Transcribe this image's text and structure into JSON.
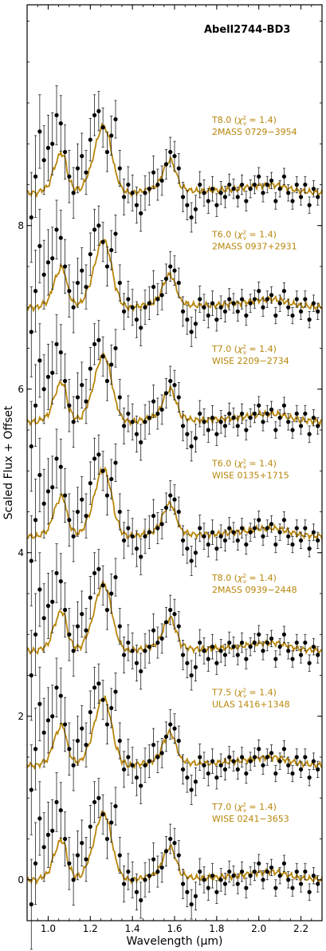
{
  "chart_data": {
    "type": "line",
    "title": "Abell2744-BD3",
    "xlabel": "Wavelength (μm)",
    "ylabel": "Scaled Flux + Offset",
    "xlim": [
      0.9,
      2.3
    ],
    "ylim": [
      -0.5,
      10.7
    ],
    "x_ticks": [
      1.0,
      1.2,
      1.4,
      1.6,
      1.8,
      2.0,
      2.2
    ],
    "x_tick_labels": [
      "1.0",
      "1.2",
      "1.4",
      "1.6",
      "1.8",
      "2.0",
      "2.2"
    ],
    "y_ticks": [
      0,
      2,
      4,
      6,
      8
    ],
    "y_tick_labels": [
      "0",
      "2",
      "4",
      "6",
      "8"
    ],
    "grid": false,
    "model_color": "#b8860b",
    "data_color": "#000000",
    "observed": {
      "x": [
        0.92,
        0.94,
        0.96,
        0.98,
        1.0,
        1.02,
        1.04,
        1.06,
        1.08,
        1.1,
        1.12,
        1.14,
        1.16,
        1.18,
        1.2,
        1.22,
        1.24,
        1.26,
        1.28,
        1.3,
        1.32,
        1.34,
        1.36,
        1.38,
        1.4,
        1.42,
        1.44,
        1.46,
        1.48,
        1.5,
        1.52,
        1.54,
        1.56,
        1.58,
        1.6,
        1.62,
        1.64,
        1.66,
        1.68,
        1.7,
        1.72,
        1.74,
        1.76,
        1.78,
        1.8,
        1.82,
        1.84,
        1.86,
        1.88,
        1.9,
        1.92,
        1.94,
        1.96,
        1.98,
        2.0,
        2.02,
        2.04,
        2.06,
        2.08,
        2.1,
        2.12,
        2.14,
        2.16,
        2.18,
        2.2,
        2.22,
        2.24,
        2.26,
        2.28
      ],
      "flux": [
        -0.3,
        0.2,
        0.75,
        0.4,
        0.55,
        0.6,
        0.95,
        0.85,
        0.5,
        0.2,
        0.0,
        0.3,
        0.45,
        0.25,
        0.65,
        0.95,
        1.0,
        0.8,
        0.5,
        0.7,
        0.9,
        0.3,
        -0.05,
        0.1,
        0.0,
        -0.15,
        -0.25,
        0.0,
        0.05,
        0.25,
        0.1,
        0.15,
        0.35,
        0.5,
        0.45,
        0.3,
        -0.05,
        -0.15,
        -0.3,
        -0.2,
        0.1,
        0.0,
        -0.1,
        0.05,
        -0.15,
        0.0,
        -0.05,
        0.1,
        0.05,
        -0.05,
        0.1,
        -0.1,
        0.05,
        0.1,
        0.2,
        0.0,
        0.1,
        0.15,
        -0.1,
        0.05,
        0.2,
        0.0,
        -0.1,
        0.1,
        -0.05,
        0.1,
        -0.15,
        0.05,
        -0.05
      ],
      "error": [
        0.55,
        0.5,
        0.45,
        0.42,
        0.4,
        0.38,
        0.36,
        0.34,
        0.33,
        0.32,
        0.31,
        0.3,
        0.28,
        0.27,
        0.26,
        0.25,
        0.24,
        0.24,
        0.24,
        0.24,
        0.23,
        0.22,
        0.22,
        0.22,
        0.22,
        0.22,
        0.22,
        0.21,
        0.2,
        0.2,
        0.19,
        0.18,
        0.18,
        0.18,
        0.18,
        0.18,
        0.18,
        0.18,
        0.18,
        0.17,
        0.16,
        0.16,
        0.15,
        0.15,
        0.14,
        0.14,
        0.13,
        0.13,
        0.12,
        0.12,
        0.12,
        0.12,
        0.11,
        0.11,
        0.11,
        0.11,
        0.1,
        0.1,
        0.1,
        0.1,
        0.1,
        0.1,
        0.1,
        0.1,
        0.1,
        0.1,
        0.1,
        0.1,
        0.1
      ]
    },
    "model_shape": {
      "x": [
        0.9,
        0.95,
        1.0,
        1.03,
        1.06,
        1.08,
        1.1,
        1.13,
        1.16,
        1.2,
        1.23,
        1.25,
        1.27,
        1.29,
        1.32,
        1.35,
        1.38,
        1.42,
        1.46,
        1.5,
        1.53,
        1.55,
        1.58,
        1.6,
        1.63,
        1.67,
        1.72,
        1.8,
        1.9,
        2.0,
        2.06,
        2.1,
        2.15,
        2.2,
        2.25,
        2.3
      ],
      "flux": [
        0.0,
        0.0,
        0.08,
        0.32,
        0.5,
        0.42,
        0.15,
        0.04,
        0.06,
        0.3,
        0.62,
        0.8,
        0.82,
        0.65,
        0.25,
        0.05,
        0.0,
        0.01,
        0.03,
        0.06,
        0.15,
        0.3,
        0.42,
        0.3,
        0.08,
        0.03,
        0.02,
        0.03,
        0.05,
        0.09,
        0.1,
        0.09,
        0.05,
        0.02,
        0.01,
        0.0
      ]
    },
    "series": [
      {
        "name": "T8.0 (χ²_ν = 1.4)",
        "spt": "T8.0",
        "chi2": "1.4",
        "template": "2MASS 0729−3954",
        "offset": 8.4
      },
      {
        "name": "T6.0 (χ²_ν = 1.4)",
        "spt": "T6.0",
        "chi2": "1.4",
        "template": "2MASS 0937+2931",
        "offset": 7.0
      },
      {
        "name": "T7.0 (χ²_ν = 1.4)",
        "spt": "T7.0",
        "chi2": "1.4",
        "template": "WISE 2209−2734",
        "offset": 5.6
      },
      {
        "name": "T6.0 (χ²_ν = 1.4)",
        "spt": "T6.0",
        "chi2": "1.4",
        "template": "WISE 0135+1715",
        "offset": 4.2
      },
      {
        "name": "T8.0 (χ²_ν = 1.4)",
        "spt": "T8.0",
        "chi2": "1.4",
        "template": "2MASS 0939−2448",
        "offset": 2.8
      },
      {
        "name": "T7.5 (χ²_ν = 1.4)",
        "spt": "T7.5",
        "chi2": "1.4",
        "template": "ULAS 1416+1348",
        "offset": 1.4
      },
      {
        "name": "T7.0 (χ²_ν = 1.4)",
        "spt": "T7.0",
        "chi2": "1.4",
        "template": "WISE 0241−3653",
        "offset": 0.0
      }
    ]
  }
}
